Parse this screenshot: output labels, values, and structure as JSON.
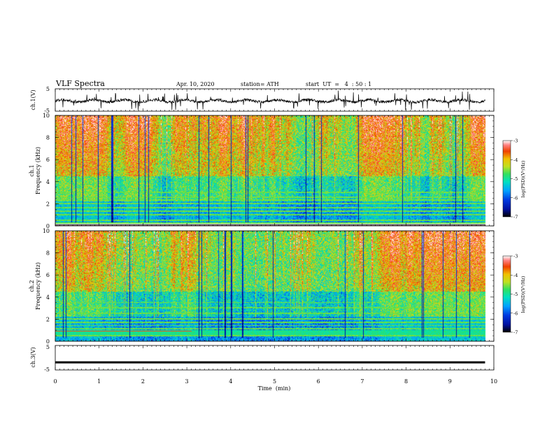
{
  "header": {
    "title": "VLF  Spectra",
    "date": "Apr. 10, 2020",
    "station": "station= ATH",
    "start_ut": "start  UT  =   4  : 50 : 1"
  },
  "colors": {
    "spectrum": [
      "#000000",
      "#0010a0",
      "#0038e0",
      "#00a0ff",
      "#00e0c0",
      "#30e060",
      "#c0e020",
      "#f0c000",
      "#f04000",
      "#ff8080",
      "#ffffff"
    ],
    "waveform": "#000000"
  },
  "chart_data": [
    {
      "type": "line",
      "panel": "ch1-waveform",
      "ylabel": "ch.1(V)",
      "ylim": [
        -5,
        5
      ],
      "yticks": [
        "5",
        "-5"
      ],
      "xlim": [
        0,
        10
      ],
      "series": [
        {
          "values_approx": "oscillation near -0.5 V with sparse spikes to about ±3 V"
        }
      ]
    },
    {
      "type": "heatmap",
      "panel": "ch1-spectrogram",
      "ylabel": "ch.1\nFrequency  (kHz)",
      "ylabel_lines": [
        "ch.1",
        "Frequency  (kHz)"
      ],
      "ylim": [
        0,
        10
      ],
      "yticks": [
        "0",
        "2",
        "4",
        "6",
        "8",
        "10"
      ],
      "xlim": [
        0,
        10
      ],
      "data_end_min": 9.8,
      "colorbar": {
        "label": "log(PSD)(V²/Hz)",
        "range": [
          -7,
          -3
        ],
        "ticks": [
          "-3",
          "-4",
          "-5",
          "-6",
          "-7"
        ]
      }
    },
    {
      "type": "heatmap",
      "panel": "ch2-spectrogram",
      "ylabel": "ch.2\nFrequency  (kHz)",
      "ylabel_lines": [
        "ch.2",
        "Frequency  (kHz)"
      ],
      "ylim": [
        0,
        10
      ],
      "yticks": [
        "0",
        "2",
        "4",
        "6",
        "8",
        "10"
      ],
      "xlim": [
        0,
        10
      ],
      "data_end_min": 9.8,
      "colorbar": {
        "label": "log(PSD)(V²/Hz)",
        "range": [
          -7,
          -3
        ],
        "ticks": [
          "-3",
          "-4",
          "-5",
          "-6",
          "-7"
        ]
      }
    },
    {
      "type": "line",
      "panel": "ch3-waveform",
      "ylabel": "ch.3(V)",
      "ylim": [
        -5,
        5
      ],
      "yticks": [
        "5",
        "-5"
      ],
      "xlim": [
        0,
        10
      ],
      "xlabel": "Time  (min)",
      "xticks": [
        "0",
        "1",
        "2",
        "3",
        "4",
        "5",
        "6",
        "7",
        "8",
        "9",
        "10"
      ],
      "series": [
        {
          "values_approx": "flat line at about -2 V"
        }
      ]
    }
  ]
}
